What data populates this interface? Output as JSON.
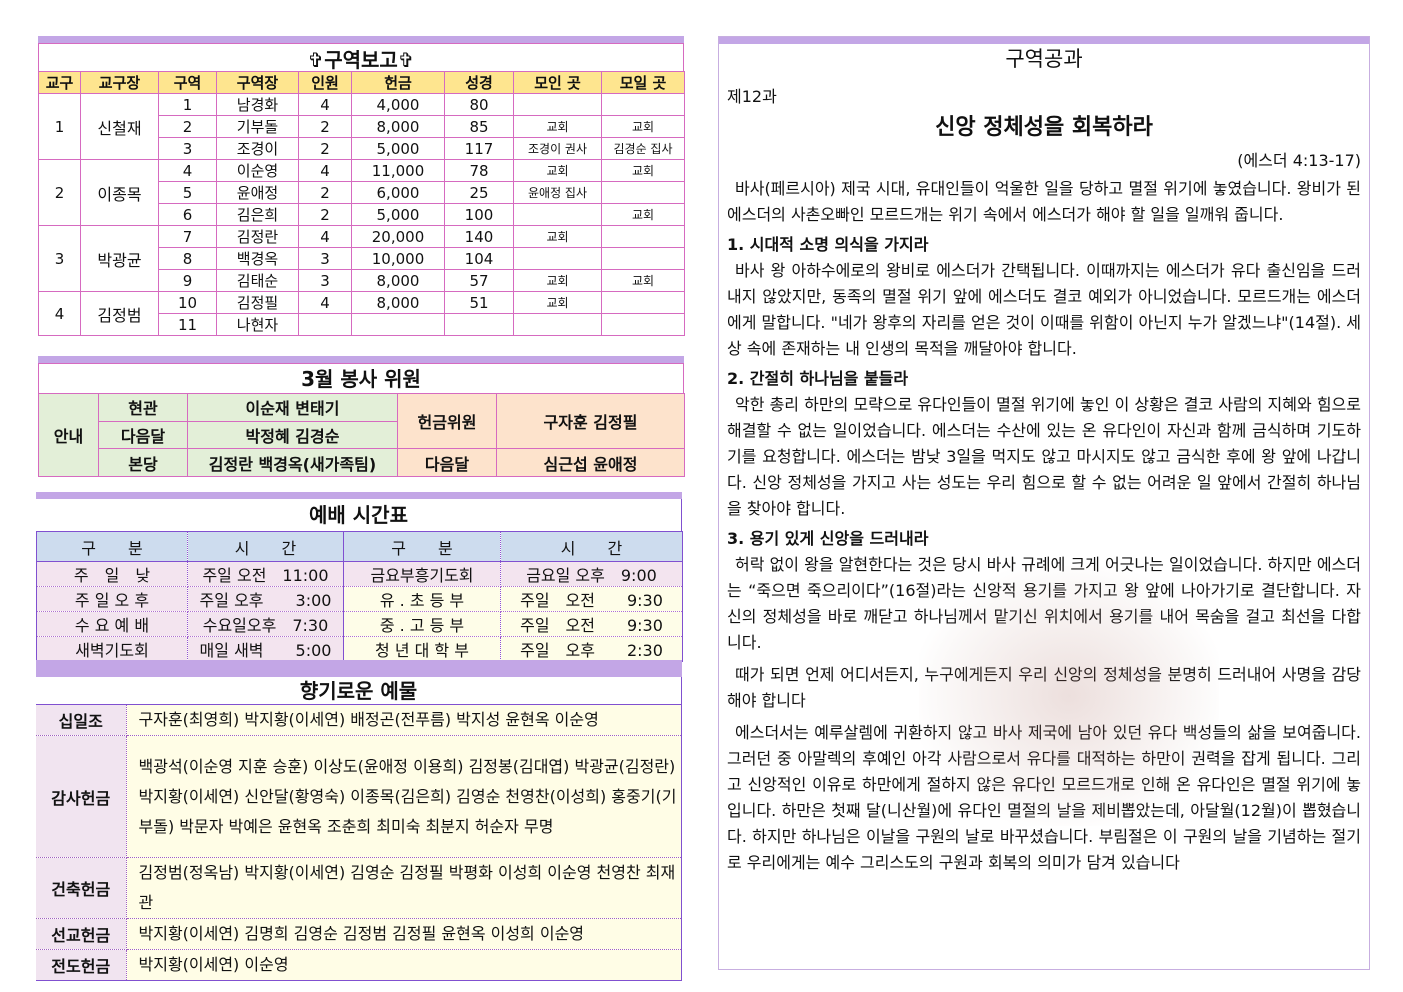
{
  "district_report": {
    "title": "✞구역보고✞",
    "headers": [
      "교구",
      "교구장",
      "구역",
      "구역장",
      "인원",
      "헌금",
      "성경",
      "모인 곳",
      "모일 곳"
    ],
    "groups": [
      {
        "parish": "1",
        "leader": "신철재",
        "rows": [
          {
            "district": "1",
            "head": "남경화",
            "members": "4",
            "offering": "4,000",
            "bible": "80",
            "met": "",
            "meet": ""
          },
          {
            "district": "2",
            "head": "기부돌",
            "members": "2",
            "offering": "8,000",
            "bible": "85",
            "met": "교회",
            "meet": "교회"
          },
          {
            "district": "3",
            "head": "조경이",
            "members": "2",
            "offering": "5,000",
            "bible": "117",
            "met": "조경이 권사",
            "meet": "김경순 집사"
          }
        ]
      },
      {
        "parish": "2",
        "leader": "이종목",
        "rows": [
          {
            "district": "4",
            "head": "이순영",
            "members": "4",
            "offering": "11,000",
            "bible": "78",
            "met": "교회",
            "meet": "교회"
          },
          {
            "district": "5",
            "head": "윤애정",
            "members": "2",
            "offering": "6,000",
            "bible": "25",
            "met": "윤애정 집사",
            "meet": ""
          },
          {
            "district": "6",
            "head": "김은희",
            "members": "2",
            "offering": "5,000",
            "bible": "100",
            "met": "",
            "meet": "교회"
          }
        ]
      },
      {
        "parish": "3",
        "leader": "박광균",
        "rows": [
          {
            "district": "7",
            "head": "김정란",
            "members": "4",
            "offering": "20,000",
            "bible": "140",
            "met": "교회",
            "meet": ""
          },
          {
            "district": "8",
            "head": "백경옥",
            "members": "3",
            "offering": "10,000",
            "bible": "104",
            "met": "",
            "meet": ""
          },
          {
            "district": "9",
            "head": "김태순",
            "members": "3",
            "offering": "8,000",
            "bible": "57",
            "met": "교회",
            "meet": "교회"
          }
        ]
      },
      {
        "parish": "4",
        "leader": "김정범",
        "rows": [
          {
            "district": "10",
            "head": "김정필",
            "members": "4",
            "offering": "8,000",
            "bible": "51",
            "met": "교회",
            "meet": ""
          },
          {
            "district": "11",
            "head": "나현자",
            "members": "",
            "offering": "",
            "bible": "",
            "met": "",
            "meet": ""
          }
        ]
      }
    ]
  },
  "service": {
    "title": "3월 봉사 위원",
    "guide": "안내",
    "r1": {
      "label": "현관",
      "names": "이순재 변태기"
    },
    "r2": {
      "label": "다음달",
      "names": "박정혜 김경순"
    },
    "r3": {
      "label": "본당",
      "names": "김정란 백경옥(새가족팀)"
    },
    "offering_label": "헌금위원",
    "offering_names": "구자훈 김정필",
    "next_label": "다음달",
    "next_names": "심근섭 윤애정"
  },
  "worship": {
    "title": "예배 시간표",
    "headers": [
      "구　　분",
      "시　　간",
      "구　　분",
      "시　　간"
    ],
    "rows": [
      [
        "주　일　낮",
        "주일 오전　11:00",
        "금요부흥기도회",
        "금요일 오후　9:00"
      ],
      [
        "주 일 오 후",
        "주일 오후　　3:00",
        "유 . 초 등 부",
        "주일　오전　　9:30"
      ],
      [
        "수 요 예 배",
        "수요일오후　7:30",
        "중 . 고 등 부",
        "주일　오전　　9:30"
      ],
      [
        "새벽기도회",
        "매일 새벽　　5:00",
        "청 년 대 학 부",
        "주일　오후　　2:30"
      ]
    ]
  },
  "offerings": {
    "title": "향기로운 예물",
    "rows": [
      {
        "label": "십일조",
        "names": "구자훈(최영희) 박지황(이세연) 배정곤(전푸름) 박지성 윤현옥 이순영"
      },
      {
        "label": "감사헌금",
        "names": "백광석(이순영 지훈 승훈) 이상도(윤애정 이용희) 김정봉(김대엽) 박광균(김정란) 박지황(이세연) 신안달(황영숙) 이종목(김은희) 김영순 천영찬(이성희) 홍중기(기부돌) 박문자 박예은 윤현옥 조춘희 최미숙 최분지 허순자 무명"
      },
      {
        "label": "건축헌금",
        "names": "김정범(정옥남) 박지황(이세연) 김영순 김정필 박평화 이성희 이순영 천영찬 최재관"
      },
      {
        "label": "선교헌금",
        "names": "박지황(이세연) 김명희 김영순 김정범 김정필 윤현옥 이성희 이순영"
      },
      {
        "label": "전도헌금",
        "names": "박지황(이세연) 이순영"
      }
    ]
  },
  "lesson": {
    "heading": "구역공과",
    "number": "제12과",
    "title": "신앙 정체성을 회복하라",
    "reference": "(에스더 4:13-17)",
    "intro": "바사(페르시아) 제국 시대, 유대인들이 억울한 일을 당하고 멸절 위기에 놓였습니다. 왕비가 된 에스더의 사촌오빠인 모르드개는 위기 속에서 에스더가 해야 할 일을 일깨워 줍니다.",
    "p1_title": "1. 시대적 소명 의식을 가지라",
    "p1": "바사 왕 아하수에로의 왕비로 에스더가 간택됩니다. 이때까지는 에스더가 유다 출신임을 드러내지 않았지만, 동족의 멸절 위기 앞에 에스더도 결코 예외가 아니었습니다. 모르드개는 에스더에게 말합니다. \"네가 왕후의 자리를 얻은 것이 이때를 위함이 아닌지 누가 알겠느냐\"(14절). 세상 속에 존재하는 내 인생의 목적을 깨달아야 합니다.",
    "p2_title": "2. 간절히 하나님을 붙들라",
    "p2": "악한 총리 하만의 모략으로 유다인들이 멸절 위기에 놓인 이 상황은 결코 사람의 지혜와 힘으로 해결할 수 없는 일이었습니다. 에스더는 수산에 있는 온 유다인이 자신과 함께 금식하며 기도하기를 요청합니다. 에스더는 밤낮 3일을 먹지도 않고 마시지도 않고 금식한 후에 왕 앞에 나갑니다. 신앙 정체성을 가지고 사는 성도는 우리 힘으로 할 수 없는 어려운 일 앞에서 간절히 하나님을 찾아야 합니다.",
    "p3_title": "3. 용기 있게 신앙을 드러내라",
    "p3": "허락 없이 왕을 알현한다는 것은 당시 바사 규례에 크게 어긋나는 일이었습니다. 하지만 에스더는 “죽으면 죽으리이다”(16절)라는 신앙적 용기를 가지고 왕 앞에 나아가기로 결단합니다. 자신의 정체성을 바로 깨닫고 하나님께서 맡기신 위치에서 용기를 내어 목숨을 걸고 최선을 다합니다.",
    "p4": "때가 되면 언제 어디서든지, 누구에게든지 우리 신앙의 정체성을 분명히 드러내어 사명을 감당해야 합니다",
    "p5": "에스더서는 예루살렘에 귀환하지 않고 바사 제국에 남아 있던 유다 백성들의 삶을 보여줍니다. 그러던 중 아말렉의 후예인 아각 사람으로서 유다를 대적하는 하만이 권력을 잡게 됩니다. 그리고 신앙적인 이유로 하만에게 절하지 않은 유다인 모르드개로 인해 온 유다인은 멸절 위기에 놓입니다. 하만은 첫째 달(니산월)에 유다인 멸절의 날을 제비뽑았는데, 아달월(12월)이 뽑혔습니다. 하지만 하나님은 이날을 구원의 날로 바꾸셨습니다. 부림절은 이 구원의 날을 기념하는 절기로 우리에게는 예수 그리스도의 구원과 회복의 의미가 담겨 있습니다"
  }
}
